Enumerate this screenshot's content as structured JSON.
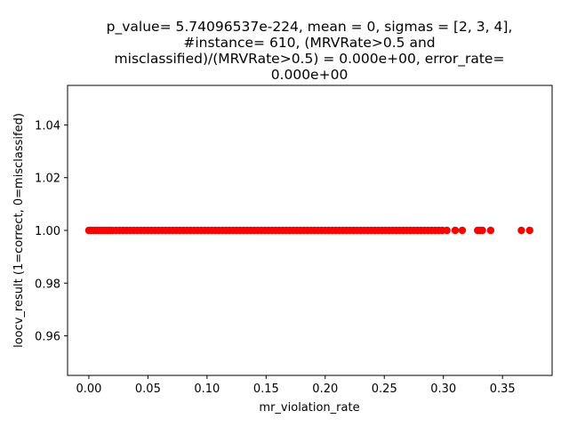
{
  "chart_data": {
    "type": "scatter",
    "title_lines": [
      "p_value= 5.74096537e-224, mean = 0, sigmas = [2, 3, 4],",
      "#instance= 610, (MRVRate>0.5 and",
      "misclassified)/(MRVRate>0.5) = 0.000e+00, error_rate=",
      "0.000e+00"
    ],
    "xlabel": "mr_violation_rate",
    "ylabel": "loocv_result (1=correct, 0=misclassifed)",
    "xlim": [
      -0.018,
      0.392
    ],
    "ylim": [
      0.945,
      1.055
    ],
    "xticks": [
      0.0,
      0.05,
      0.1,
      0.15,
      0.2,
      0.25,
      0.3,
      0.35
    ],
    "xtick_labels": [
      "0.00",
      "0.05",
      "0.10",
      "0.15",
      "0.20",
      "0.25",
      "0.30",
      "0.35"
    ],
    "yticks": [
      0.96,
      0.98,
      1.0,
      1.02,
      1.04
    ],
    "ytick_labels": [
      "0.96",
      "0.98",
      "1.00",
      "1.02",
      "1.04"
    ],
    "grid": false,
    "marker_color": "#ff0000",
    "series": [
      {
        "x": [
          0.0,
          0.002,
          0.004,
          0.006,
          0.008,
          0.01,
          0.012,
          0.014,
          0.016,
          0.018,
          0.02,
          0.023,
          0.026,
          0.029,
          0.032,
          0.035,
          0.038,
          0.041,
          0.044,
          0.047,
          0.05,
          0.053,
          0.056,
          0.059,
          0.062,
          0.065,
          0.068,
          0.071,
          0.074,
          0.077,
          0.08,
          0.083,
          0.086,
          0.089,
          0.092,
          0.095,
          0.098,
          0.101,
          0.104,
          0.107,
          0.11,
          0.113,
          0.116,
          0.119,
          0.122,
          0.125,
          0.128,
          0.131,
          0.134,
          0.137,
          0.14,
          0.143,
          0.146,
          0.149,
          0.152,
          0.155,
          0.158,
          0.161,
          0.164,
          0.167,
          0.17,
          0.173,
          0.176,
          0.179,
          0.182,
          0.185,
          0.188,
          0.191,
          0.194,
          0.197,
          0.2,
          0.203,
          0.206,
          0.209,
          0.212,
          0.215,
          0.218,
          0.221,
          0.224,
          0.227,
          0.23,
          0.233,
          0.236,
          0.239,
          0.242,
          0.245,
          0.248,
          0.251,
          0.254,
          0.257,
          0.26,
          0.263,
          0.266,
          0.269,
          0.272,
          0.275,
          0.278,
          0.281,
          0.284,
          0.287,
          0.29,
          0.293,
          0.296,
          0.299,
          0.303,
          0.31,
          0.316,
          0.329,
          0.331,
          0.333,
          0.34,
          0.366,
          0.373
        ],
        "y": [
          1.0,
          1.0,
          1.0,
          1.0,
          1.0,
          1.0,
          1.0,
          1.0,
          1.0,
          1.0,
          1.0,
          1.0,
          1.0,
          1.0,
          1.0,
          1.0,
          1.0,
          1.0,
          1.0,
          1.0,
          1.0,
          1.0,
          1.0,
          1.0,
          1.0,
          1.0,
          1.0,
          1.0,
          1.0,
          1.0,
          1.0,
          1.0,
          1.0,
          1.0,
          1.0,
          1.0,
          1.0,
          1.0,
          1.0,
          1.0,
          1.0,
          1.0,
          1.0,
          1.0,
          1.0,
          1.0,
          1.0,
          1.0,
          1.0,
          1.0,
          1.0,
          1.0,
          1.0,
          1.0,
          1.0,
          1.0,
          1.0,
          1.0,
          1.0,
          1.0,
          1.0,
          1.0,
          1.0,
          1.0,
          1.0,
          1.0,
          1.0,
          1.0,
          1.0,
          1.0,
          1.0,
          1.0,
          1.0,
          1.0,
          1.0,
          1.0,
          1.0,
          1.0,
          1.0,
          1.0,
          1.0,
          1.0,
          1.0,
          1.0,
          1.0,
          1.0,
          1.0,
          1.0,
          1.0,
          1.0,
          1.0,
          1.0,
          1.0,
          1.0,
          1.0,
          1.0,
          1.0,
          1.0,
          1.0,
          1.0,
          1.0,
          1.0,
          1.0,
          1.0,
          1.0,
          1.0,
          1.0,
          1.0,
          1.0,
          1.0,
          1.0,
          1.0,
          1.0
        ]
      }
    ]
  }
}
